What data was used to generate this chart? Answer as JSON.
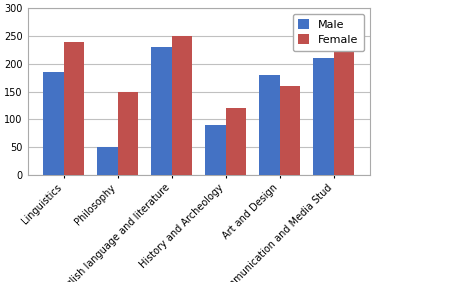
{
  "categories": [
    "Linguistics",
    "Philosophy",
    "English language and literature",
    "History and Archeology",
    "Art and Design",
    "Communication and Media Stud"
  ],
  "male_values": [
    185,
    50,
    230,
    90,
    180,
    210
  ],
  "female_values": [
    240,
    150,
    250,
    120,
    160,
    230
  ],
  "male_color": "#4472C4",
  "female_color": "#C0504D",
  "ylim": [
    0,
    300
  ],
  "yticks": [
    0,
    50,
    100,
    150,
    200,
    250,
    300
  ],
  "legend_labels": [
    "Male",
    "Female"
  ],
  "bar_width": 0.38,
  "background_color": "#FFFFFF",
  "grid_color": "#C0C0C0",
  "tick_fontsize": 7,
  "legend_fontsize": 8
}
